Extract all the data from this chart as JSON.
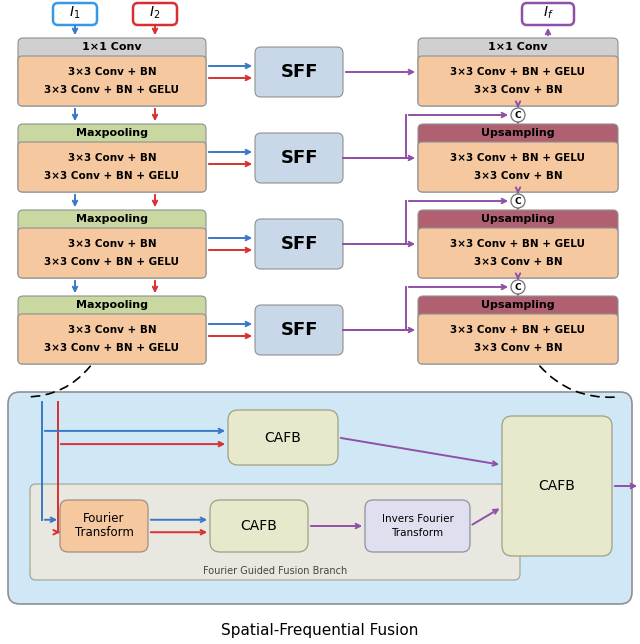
{
  "title": "Spatial-Frequential Fusion",
  "encoder_blocks": [
    {
      "header": "1×1 Conv",
      "lines": [
        "3×3 Conv + BN",
        "3×3 Conv + BN + GELU"
      ],
      "hcolor": "#d0d0d0"
    },
    {
      "header": "Maxpooling",
      "lines": [
        "3×3 Conv + BN",
        "3×3 Conv + BN + GELU"
      ],
      "hcolor": "#c8d8a0"
    },
    {
      "header": "Maxpooling",
      "lines": [
        "3×3 Conv + BN",
        "3×3 Conv + BN + GELU"
      ],
      "hcolor": "#c8d8a0"
    },
    {
      "header": "Maxpooling",
      "lines": [
        "3×3 Conv + BN",
        "3×3 Conv + BN + GELU"
      ],
      "hcolor": "#c8d8a0"
    }
  ],
  "decoder_blocks": [
    {
      "header": "1×1 Conv",
      "lines": [
        "3×3 Conv + BN + GELU",
        "3×3 Conv + BN"
      ],
      "hcolor": "#d0d0d0"
    },
    {
      "header": "Upsampling",
      "lines": [
        "3×3 Conv + BN + GELU",
        "3×3 Conv + BN"
      ],
      "hcolor": "#b06070"
    },
    {
      "header": "Upsampling",
      "lines": [
        "3×3 Conv + BN + GELU",
        "3×3 Conv + BN"
      ],
      "hcolor": "#b06070"
    },
    {
      "header": "Upsampling",
      "lines": [
        "3×3 Conv + BN + GELU",
        "3×3 Conv + BN"
      ],
      "hcolor": "#b06070"
    }
  ],
  "enc_body_color": "#f5c8a0",
  "dec_body_color": "#f5c8a0",
  "sff_color": "#c8d8e8",
  "blue": "#3878c8",
  "red": "#d83030",
  "purple": "#9050a8",
  "input1_border": "#3898e8",
  "input2_border": "#d83030",
  "output_border": "#9050a8",
  "panel_color": "#d0e8f5",
  "cafb_color": "#e8e8cc",
  "fourier_box_color": "#f5c8a0",
  "ift_box_color": "#e0dff0",
  "branch_box_color": "#e8e8e0"
}
